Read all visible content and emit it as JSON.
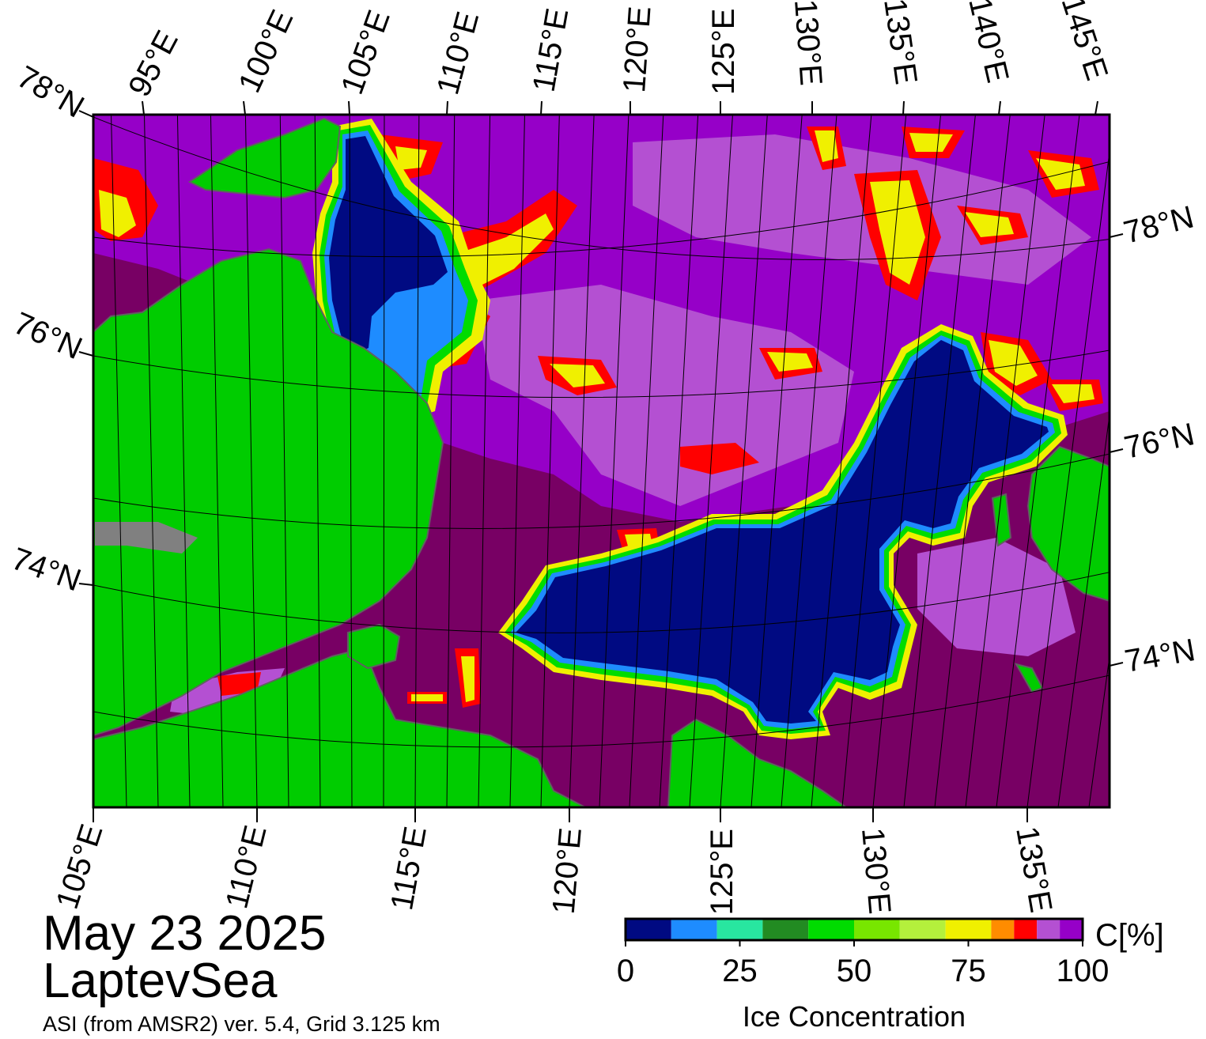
{
  "title": {
    "date": "May 23 2025",
    "region": "LaptevSea",
    "source": "ASI (from AMSR2) ver. 5.4,  Grid 3.125 km"
  },
  "colors": {
    "land": "#00cc00",
    "land_edge": "#808080",
    "ice_full": "#780064",
    "ice_high": "#9600c8",
    "ice_mid": "#b450d2",
    "open_water": "#000a82"
  },
  "map": {
    "top_labels": [
      "95°E",
      "100°E",
      "105°E",
      "110°E",
      "115°E",
      "120°E",
      "125°E",
      "130°E",
      "135°E",
      "140°E",
      "145°E"
    ],
    "bottom_labels": [
      "105°E",
      "110°E",
      "115°E",
      "120°E",
      "125°E",
      "130°E",
      "135°E"
    ],
    "left_labels": [
      "78°N",
      "76°N",
      "74°N"
    ],
    "right_labels": [
      "78°N",
      "76°N",
      "74°N"
    ]
  },
  "colorbar": {
    "title": "Ice Concentration",
    "unit": "C[%]",
    "ticks": [
      "0",
      "25",
      "50",
      "75",
      "100"
    ],
    "bins": [
      {
        "from": 0,
        "to": 10,
        "color": "#000a82"
      },
      {
        "from": 10,
        "to": 20,
        "color": "#1e8cff"
      },
      {
        "from": 20,
        "to": 30,
        "color": "#28e6a0"
      },
      {
        "from": 30,
        "to": 40,
        "color": "#228b22"
      },
      {
        "from": 40,
        "to": 50,
        "color": "#00dc00"
      },
      {
        "from": 50,
        "to": 60,
        "color": "#78e600"
      },
      {
        "from": 60,
        "to": 70,
        "color": "#b4f03c"
      },
      {
        "from": 70,
        "to": 80,
        "color": "#f0f000"
      },
      {
        "from": 80,
        "to": 85,
        "color": "#ff8c00"
      },
      {
        "from": 85,
        "to": 90,
        "color": "#ff0000"
      },
      {
        "from": 90,
        "to": 95,
        "color": "#b450d2"
      },
      {
        "from": 95,
        "to": 100,
        "color": "#9600c8"
      }
    ]
  }
}
